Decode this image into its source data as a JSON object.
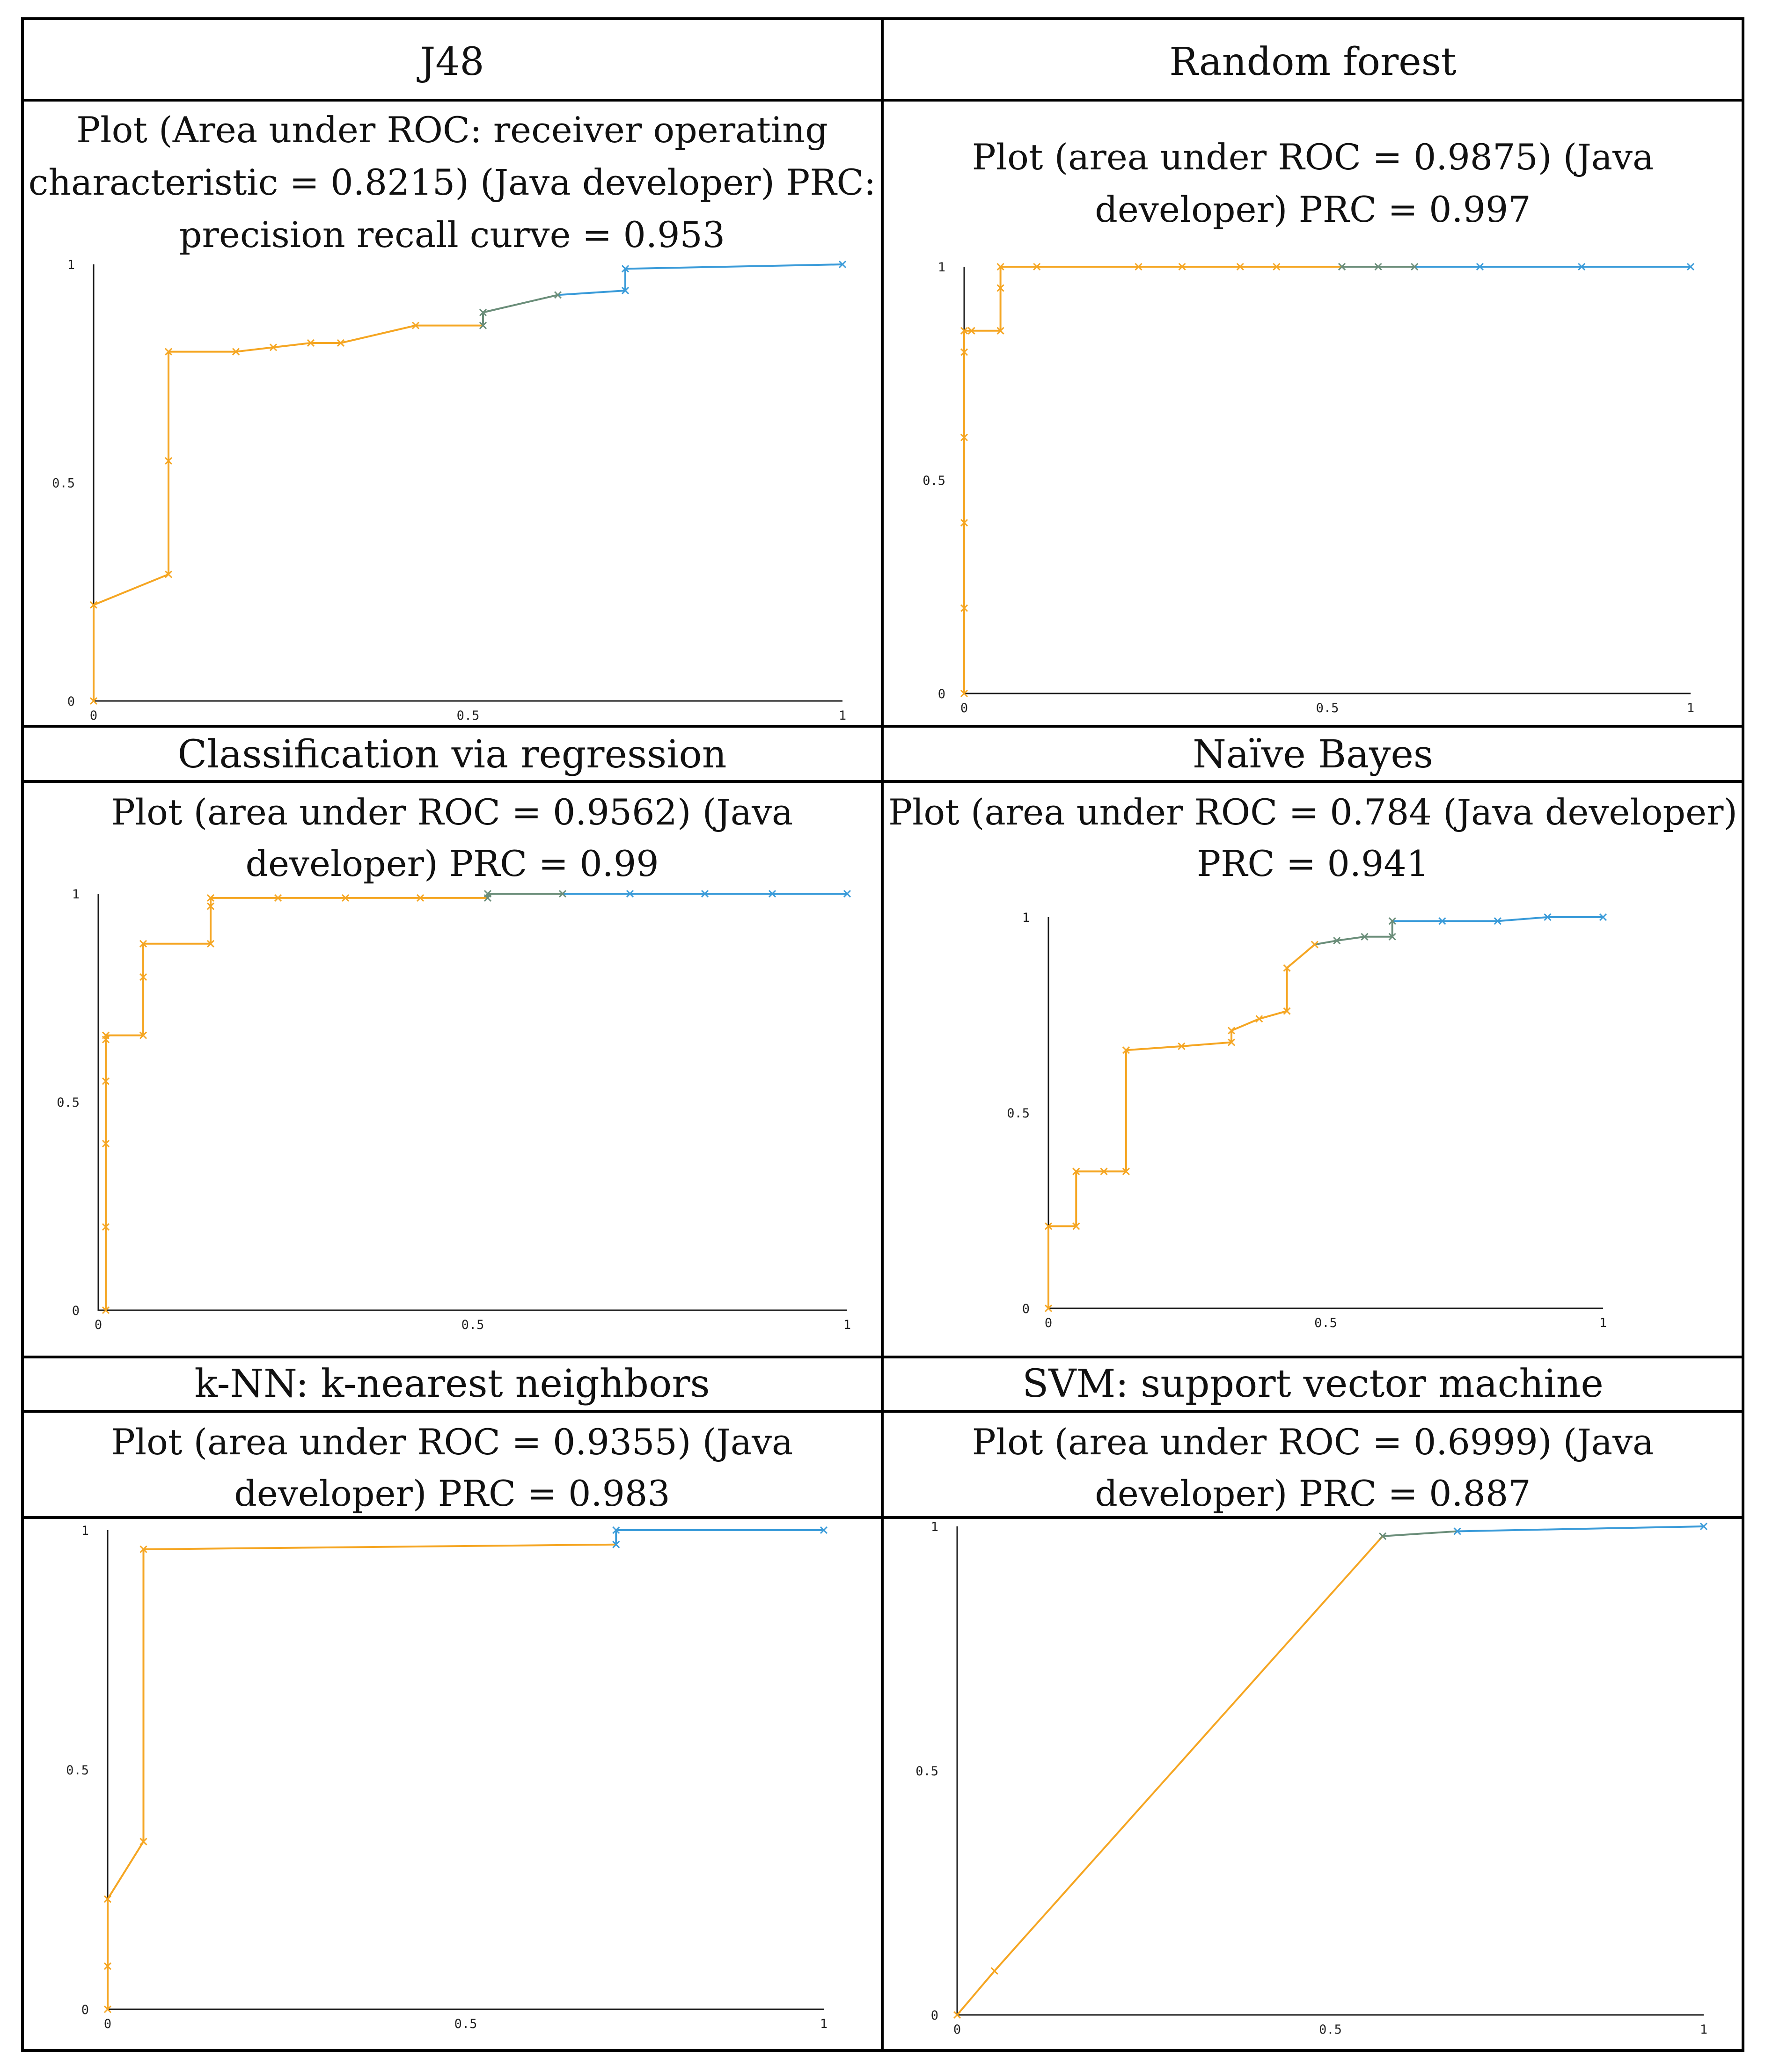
{
  "cells": [
    {
      "name": "j48",
      "header": "J48",
      "caption": [
        "Plot (Area under ROC: receiver operating",
        "characteristic = 0.8215) (Java developer) PRC:",
        "precision recall curve = 0.953"
      ]
    },
    {
      "name": "random-forest",
      "header": "Random forest",
      "caption": [
        "Plot (area under ROC = 0.9875) (Java",
        "developer) PRC = 0.997"
      ]
    },
    {
      "name": "classification-via-regression",
      "header": "Classification via regression",
      "caption": [
        "Plot (area under ROC = 0.9562) (Java",
        "developer) PRC = 0.99"
      ]
    },
    {
      "name": "naive-bayes",
      "header": "Naïve Bayes",
      "caption": [
        "Plot (area under ROC = 0.784 (Java developer)",
        "PRC = 0.941"
      ]
    },
    {
      "name": "knn",
      "header": "k-NN: k-nearest neighbors",
      "caption": [
        "Plot (area under ROC = 0.9355) (Java",
        "developer) PRC = 0.983"
      ]
    },
    {
      "name": "svm",
      "header": "SVM: support vector machine",
      "caption": [
        "Plot (area under ROC = 0.6999) (Java",
        "developer) PRC = 0.887"
      ]
    }
  ],
  "colors": {
    "low": "#f5a623",
    "mid": "#6b8e7a",
    "high": "#3a9bd9",
    "axis": "#1a1a1a"
  },
  "chart_data": [
    {
      "type": "line",
      "name": "j48-roc",
      "xlim": [
        0,
        1
      ],
      "ylim": [
        0,
        1
      ],
      "x_ticks": [
        "0",
        "0.5",
        "1"
      ],
      "y_ticks": [
        "0",
        "0.5",
        "1"
      ],
      "x": [
        0,
        0,
        0.1,
        0.1,
        0.1,
        0.19,
        0.24,
        0.29,
        0.33,
        0.43,
        0.52,
        0.52,
        0.62,
        0.71,
        0.71,
        1.0
      ],
      "y": [
        0,
        0.22,
        0.29,
        0.55,
        0.8,
        0.8,
        0.81,
        0.82,
        0.82,
        0.86,
        0.86,
        0.89,
        0.93,
        0.94,
        0.99,
        1.0
      ]
    },
    {
      "type": "line",
      "name": "random-forest-roc",
      "xlim": [
        0,
        1
      ],
      "ylim": [
        0,
        1
      ],
      "x_ticks": [
        "0",
        "0.5",
        "1"
      ],
      "y_ticks": [
        "0",
        "0.5",
        "1"
      ],
      "x": [
        0,
        0,
        0,
        0,
        0,
        0,
        0.01,
        0.01,
        0.05,
        0.05,
        0.05,
        0.1,
        0.24,
        0.3,
        0.38,
        0.43,
        0.52,
        0.52,
        0.57,
        0.62,
        0.71,
        0.85,
        1.0
      ],
      "y": [
        0,
        0.2,
        0.4,
        0.6,
        0.8,
        0.85,
        0.85,
        0.85,
        0.85,
        0.95,
        1.0,
        1.0,
        1.0,
        1.0,
        1.0,
        1.0,
        1.0,
        1.0,
        1.0,
        1.0,
        1.0,
        1.0,
        1.0
      ]
    },
    {
      "type": "line",
      "name": "classification-via-regression-roc",
      "xlim": [
        0,
        1
      ],
      "ylim": [
        0,
        1
      ],
      "x_ticks": [
        "0",
        "0.5",
        "1"
      ],
      "y_ticks": [
        "0",
        "0.5",
        "1"
      ],
      "x": [
        0.01,
        0.01,
        0.01,
        0.01,
        0.01,
        0.01,
        0.06,
        0.06,
        0.06,
        0.15,
        0.15,
        0.15,
        0.24,
        0.33,
        0.43,
        0.52,
        0.52,
        0.62,
        0.71,
        0.81,
        0.9,
        1.0
      ],
      "y": [
        0,
        0.2,
        0.4,
        0.55,
        0.65,
        0.66,
        0.66,
        0.8,
        0.88,
        0.88,
        0.97,
        0.99,
        0.99,
        0.99,
        0.99,
        0.99,
        1.0,
        1.0,
        1.0,
        1.0,
        1.0,
        1.0
      ]
    },
    {
      "type": "line",
      "name": "naive-bayes-roc",
      "xlim": [
        0,
        1
      ],
      "ylim": [
        0,
        1
      ],
      "x_ticks": [
        "0",
        "0.5",
        "1"
      ],
      "y_ticks": [
        "0",
        "0.5",
        "1"
      ],
      "x": [
        0,
        0,
        0.05,
        0.05,
        0.1,
        0.14,
        0.14,
        0.24,
        0.33,
        0.33,
        0.38,
        0.43,
        0.43,
        0.48,
        0.52,
        0.57,
        0.62,
        0.62,
        0.71,
        0.81,
        0.9,
        1.0
      ],
      "y": [
        0,
        0.21,
        0.21,
        0.35,
        0.35,
        0.35,
        0.66,
        0.67,
        0.68,
        0.71,
        0.74,
        0.76,
        0.87,
        0.93,
        0.94,
        0.95,
        0.95,
        0.99,
        0.99,
        0.99,
        1.0,
        1.0
      ]
    },
    {
      "type": "line",
      "name": "knn-roc",
      "xlim": [
        0,
        1
      ],
      "ylim": [
        0,
        1
      ],
      "x_ticks": [
        "0",
        "0.5",
        "1"
      ],
      "y_ticks": [
        "0",
        "0.5",
        "1"
      ],
      "x": [
        0,
        0,
        0,
        0.05,
        0.05,
        0.71,
        0.71,
        1.0
      ],
      "y": [
        0,
        0.09,
        0.23,
        0.35,
        0.96,
        0.97,
        1.0,
        1.0
      ]
    },
    {
      "type": "line",
      "name": "svm-roc",
      "xlim": [
        0,
        1
      ],
      "ylim": [
        0,
        1
      ],
      "x_ticks": [
        "0",
        "0.5",
        "1"
      ],
      "y_ticks": [
        "0",
        "0.5",
        "1"
      ],
      "x": [
        0,
        0.05,
        0.57,
        0.67,
        1.0
      ],
      "y": [
        0,
        0.09,
        0.98,
        0.99,
        1.0
      ]
    }
  ]
}
